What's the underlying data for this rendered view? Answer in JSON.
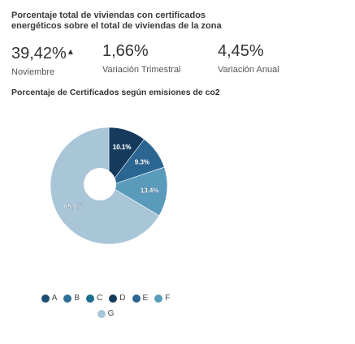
{
  "header": {
    "title": "Porcentaje total de viviendas con certificados energéticos sobre el total de viviendas de la zona"
  },
  "stats": [
    {
      "value": "39,42%",
      "trend": "▴",
      "label": "Noviembre"
    },
    {
      "value": "1,66%",
      "trend": "",
      "label": "Variación Trimestral"
    },
    {
      "value": "4,45%",
      "trend": "",
      "label": "Variación Anual"
    }
  ],
  "chart_data": {
    "type": "pie",
    "title": "Porcentaje de Certificados según emisiones de co2",
    "categories": [
      "A",
      "B",
      "C",
      "D",
      "E",
      "F",
      "G"
    ],
    "values": [
      0.0,
      0.0,
      0.0,
      10.1,
      9.3,
      13.4,
      65.0
    ],
    "value_labels": [
      "",
      "",
      "",
      "10.1%",
      "9.3%",
      "13.4%",
      "65.0%"
    ],
    "colors": [
      "#1d4e73",
      "#2f6f99",
      "#1b6f8f",
      "#163a5c",
      "#2b6591",
      "#5a9bbb",
      "#a9c5d8"
    ],
    "legend_position": "bottom",
    "center_marker": true
  }
}
